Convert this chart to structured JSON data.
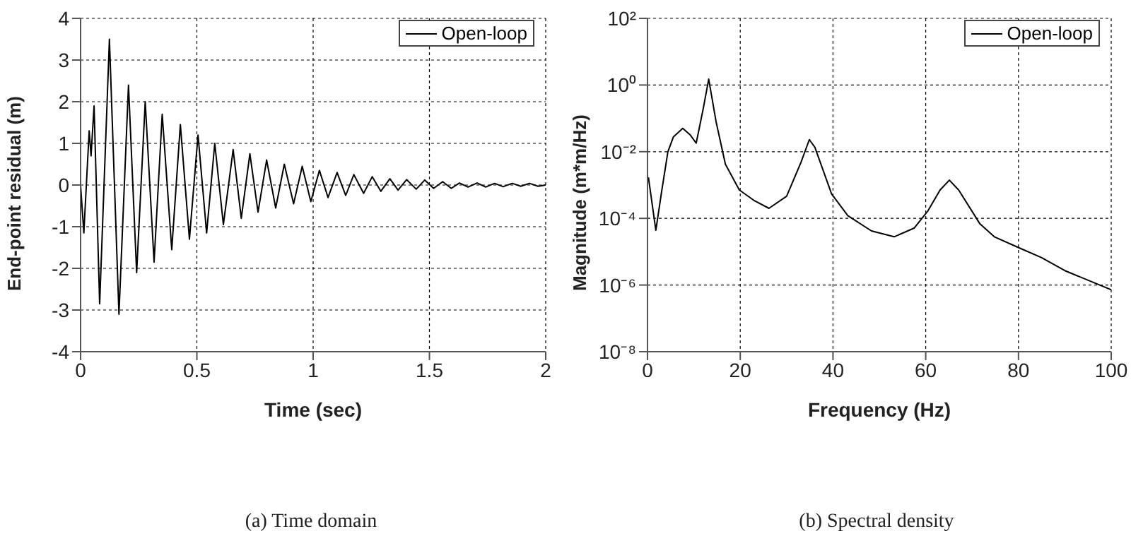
{
  "chart_data": [
    {
      "type": "line",
      "xlabel": "Time (sec)",
      "ylabel": "End-point residual (m)",
      "annotations": [
        "(a) Time domain"
      ],
      "xlim": [
        0,
        2
      ],
      "xticks": [
        0,
        0.5,
        1,
        1.5,
        2
      ],
      "ylim": [
        -4,
        4
      ],
      "yticks": [
        -4,
        -3,
        -2,
        -1,
        0,
        1,
        2,
        3,
        4
      ],
      "grid": true,
      "legend": "top right",
      "marker": "none",
      "line_style": "solid",
      "x": [
        0,
        0.014,
        0.037,
        0.045,
        0.058,
        0.082,
        0.124,
        0.165,
        0.206,
        0.241,
        0.278,
        0.316,
        0.351,
        0.392,
        0.429,
        0.468,
        0.505,
        0.542,
        0.577,
        0.614,
        0.656,
        0.691,
        0.728,
        0.763,
        0.8,
        0.839,
        0.876,
        0.916,
        0.953,
        0.99,
        1.027,
        1.064,
        1.103,
        1.14,
        1.175,
        1.217,
        1.254,
        1.291,
        1.33,
        1.365,
        1.402,
        1.443,
        1.48,
        1.518,
        1.557,
        1.594,
        1.629,
        1.666,
        1.705,
        1.742,
        1.78,
        1.817,
        1.856,
        1.893,
        1.93,
        1.967,
        2
      ],
      "series": [
        {
          "name": "Open-loop",
          "color": "#000000",
          "values": [
            0,
            -1.15,
            1.3,
            0.7,
            1.9,
            -2.85,
            3.5,
            -3.1,
            2.4,
            -2.1,
            2.0,
            -1.85,
            1.7,
            -1.55,
            1.45,
            -1.3,
            1.2,
            -1.15,
            1.0,
            -0.95,
            0.85,
            -0.8,
            0.75,
            -0.65,
            0.6,
            -0.55,
            0.5,
            -0.45,
            0.45,
            -0.4,
            0.35,
            -0.3,
            0.3,
            -0.25,
            0.25,
            -0.2,
            0.2,
            -0.15,
            0.15,
            -0.12,
            0.13,
            -0.1,
            0.12,
            -0.08,
            0.08,
            -0.08,
            0.05,
            -0.05,
            0.05,
            -0.05,
            0.04,
            -0.04,
            0.04,
            -0.03,
            0.04,
            -0.03,
            0
          ]
        }
      ]
    },
    {
      "type": "line",
      "xlabel": "Frequency (Hz)",
      "ylabel": "Magnitude (m*m/Hz)",
      "annotations": [
        "(b) Spectral density"
      ],
      "xlim": [
        0,
        100
      ],
      "xticks": [
        0,
        20,
        40,
        60,
        80,
        100
      ],
      "ylim": [
        1e-08,
        100
      ],
      "yticks": [
        {
          "value": 1e-08,
          "label": "10⁻⁸"
        },
        {
          "value": 1e-06,
          "label": "10⁻⁶"
        },
        {
          "value": 0.0001,
          "label": "10⁻⁴"
        },
        {
          "value": 0.01,
          "label": "10⁻²"
        },
        {
          "value": 1,
          "label": "10⁰"
        },
        {
          "value": 100,
          "label": "10²"
        }
      ],
      "log": "y",
      "grid": true,
      "legend": "top right",
      "marker": "none",
      "line_style": "solid",
      "x": [
        0.2,
        1.8,
        3.1,
        4.4,
        5.6,
        7.6,
        9.2,
        10.5,
        12.0,
        13.2,
        14.8,
        16.8,
        19.8,
        22.9,
        26.2,
        30.0,
        33.1,
        34.9,
        36.1,
        39.7,
        43.2,
        48.3,
        53.2,
        57.5,
        60.5,
        63.1,
        65.1,
        67.1,
        71.7,
        74.8,
        79.9,
        85.0,
        90.0,
        100
      ],
      "series": [
        {
          "name": "Open-loop",
          "color": "#000000",
          "values": [
            0.0017,
            4.4e-05,
            0.00071,
            0.01,
            0.028,
            0.05,
            0.032,
            0.018,
            0.19,
            1.5,
            0.078,
            0.0042,
            0.00071,
            0.00035,
            0.0002,
            0.00046,
            0.0048,
            0.023,
            0.0135,
            0.00054,
            0.00012,
            4.2e-05,
            2.8e-05,
            5.1e-05,
            0.00017,
            0.00071,
            0.0014,
            0.00071,
            6.8e-05,
            2.8e-05,
            1.35e-05,
            6.6e-06,
            2.7e-06,
            7.2e-07
          ]
        }
      ]
    }
  ]
}
